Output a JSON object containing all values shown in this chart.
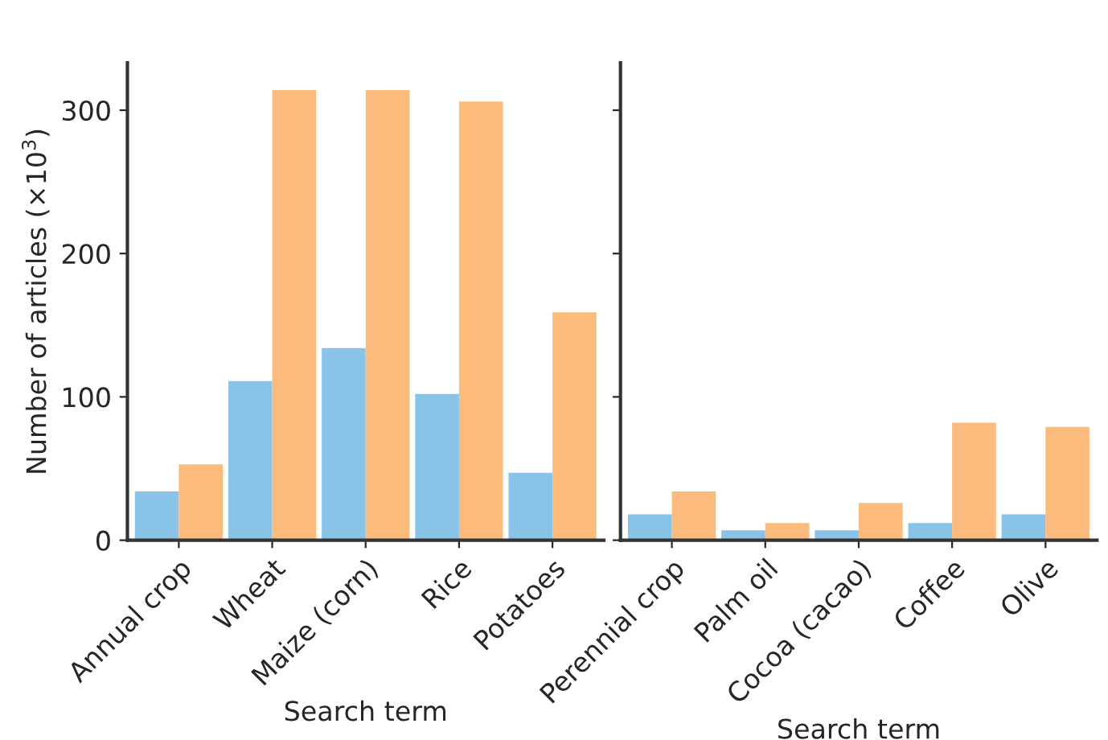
{
  "chart_data": [
    {
      "type": "bar",
      "xlabel": "Search term",
      "ylabel": "Number of articles (×10$^{3}$)",
      "categories": [
        "Annual crop",
        "Wheat",
        "Maize (corn)",
        "Rice",
        "Potatoes"
      ],
      "series": [
        {
          "color": "#89c4e8",
          "values": [
            34,
            111,
            134,
            102,
            47
          ]
        },
        {
          "color": "#fbbb7d",
          "values": [
            53,
            314,
            314,
            306,
            159
          ]
        }
      ],
      "ylim": [
        0,
        333
      ],
      "yticks": [
        0,
        100,
        200,
        300
      ],
      "grid": false,
      "legend": false
    },
    {
      "type": "bar",
      "xlabel": "Search term",
      "categories": [
        "Perennial crop",
        "Palm oil",
        "Cocoa (cacao)",
        "Coffee",
        "Olive"
      ],
      "series": [
        {
          "color": "#89c4e8",
          "values": [
            18,
            7,
            7,
            12,
            18
          ]
        },
        {
          "color": "#fbbb7d",
          "values": [
            34,
            12,
            26,
            82,
            79
          ]
        }
      ],
      "ylim": [
        0,
        333
      ],
      "yticks": [
        0,
        100,
        200,
        300
      ],
      "grid": false,
      "legend": false,
      "tick_labels": "x"
    }
  ]
}
